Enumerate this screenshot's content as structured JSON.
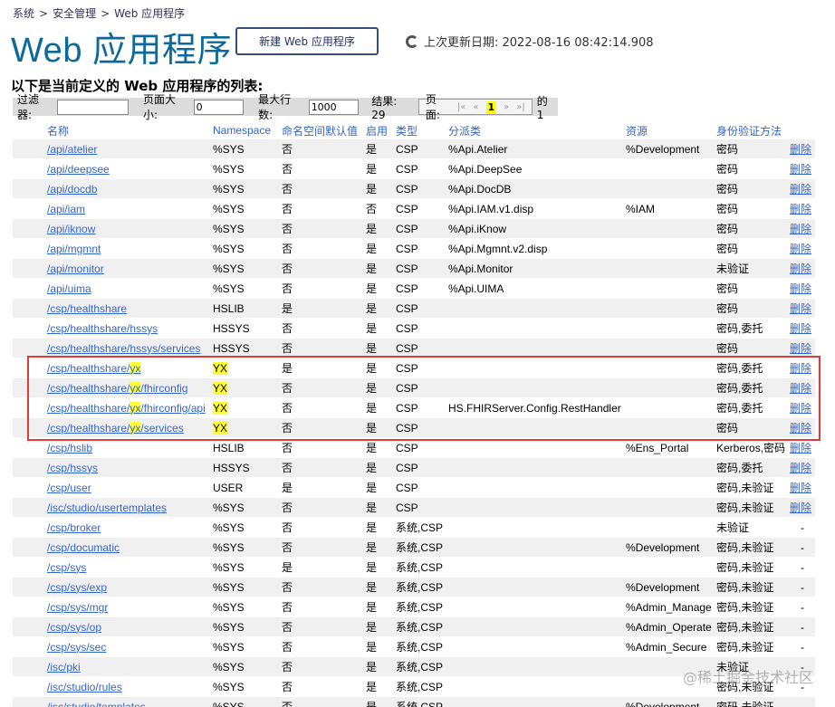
{
  "breadcrumb": [
    "系统",
    "安全管理",
    "Web 应用程序"
  ],
  "breadcrumb_separator": ">",
  "title": "Web 应用程序",
  "new_button": "新建 Web 应用程序",
  "last_update": "上次更新日期: 2022-08-16 08:42:14.908",
  "subtitle": "以下是当前定义的 Web 应用程序的列表:",
  "filter_bar": {
    "filter_label": "过滤器:",
    "page_size_label": "页面大小:",
    "page_size": "0",
    "max_rows_label": "最大行数:",
    "max_rows": "1000",
    "results": "结果: 29",
    "page_label": "页面:",
    "pager": [
      "|«",
      "«",
      "1",
      "»",
      "»|"
    ],
    "current_page": "1",
    "page_total": "的 1"
  },
  "highlight": "yx",
  "table": {
    "headers": [
      "名称",
      "Namespace",
      "命名空间默认值",
      "启用",
      "类型",
      "分派类",
      "资源",
      "身份验证方法",
      null
    ],
    "rows": [
      [
        "/api/atelier",
        "%SYS",
        "否",
        "是",
        "CSP",
        "%Api.Atelier",
        "%Development",
        "密码",
        "删除"
      ],
      [
        "/api/deepsee",
        "%SYS",
        "否",
        "是",
        "CSP",
        "%Api.DeepSee",
        null,
        "密码",
        "删除"
      ],
      [
        "/api/docdb",
        "%SYS",
        "否",
        "是",
        "CSP",
        "%Api.DocDB",
        null,
        "密码",
        "删除"
      ],
      [
        "/api/iam",
        "%SYS",
        "否",
        "否",
        "CSP",
        "%Api.IAM.v1.disp",
        "%IAM",
        "密码",
        "删除"
      ],
      [
        "/api/iknow",
        "%SYS",
        "否",
        "是",
        "CSP",
        "%Api.iKnow",
        null,
        "密码",
        "删除"
      ],
      [
        "/api/mgmnt",
        "%SYS",
        "否",
        "是",
        "CSP",
        "%Api.Mgmnt.v2.disp",
        null,
        "密码",
        "删除"
      ],
      [
        "/api/monitor",
        "%SYS",
        "否",
        "是",
        "CSP",
        "%Api.Monitor",
        null,
        "未验证",
        "删除"
      ],
      [
        "/api/uima",
        "%SYS",
        "否",
        "是",
        "CSP",
        "%Api.UIMA",
        null,
        "密码",
        "删除"
      ],
      [
        "/csp/healthshare",
        "HSLIB",
        "是",
        "是",
        "CSP",
        null,
        null,
        "密码",
        "删除"
      ],
      [
        "/csp/healthshare/hssys",
        "HSSYS",
        "否",
        "是",
        "CSP",
        null,
        null,
        "密码,委托",
        "删除"
      ],
      [
        "/csp/healthshare/hssys/services",
        "HSSYS",
        "否",
        "是",
        "CSP",
        null,
        null,
        "密码",
        "删除"
      ],
      [
        "/csp/healthshare/yx",
        "YX",
        "是",
        "是",
        "CSP",
        null,
        null,
        "密码,委托",
        "删除"
      ],
      [
        "/csp/healthshare/yx/fhirconfig",
        "YX",
        "否",
        "是",
        "CSP",
        null,
        null,
        "密码,委托",
        "删除"
      ],
      [
        "/csp/healthshare/yx/fhirconfig/api",
        "YX",
        "否",
        "是",
        "CSP",
        "HS.FHIRServer.Config.RestHandler",
        null,
        "密码,委托",
        "删除"
      ],
      [
        "/csp/healthshare/yx/services",
        "YX",
        "否",
        "是",
        "CSP",
        null,
        null,
        "密码",
        "删除"
      ],
      [
        "/csp/hslib",
        "HSLIB",
        "否",
        "是",
        "CSP",
        null,
        "%Ens_Portal",
        "Kerberos,密码",
        "删除"
      ],
      [
        "/csp/hssys",
        "HSSYS",
        "否",
        "是",
        "CSP",
        null,
        null,
        "密码,委托",
        "删除"
      ],
      [
        "/csp/user",
        "USER",
        "是",
        "是",
        "CSP",
        null,
        null,
        "密码,未验证",
        "删除"
      ],
      [
        "/isc/studio/usertemplates",
        "%SYS",
        "否",
        "是",
        "CSP",
        null,
        null,
        "密码,未验证",
        "删除"
      ],
      [
        "/csp/broker",
        "%SYS",
        "否",
        "是",
        "系统,CSP",
        null,
        null,
        "未验证",
        "-"
      ],
      [
        "/csp/documatic",
        "%SYS",
        "否",
        "是",
        "系统,CSP",
        null,
        "%Development",
        "密码,未验证",
        "-"
      ],
      [
        "/csp/sys",
        "%SYS",
        "是",
        "是",
        "系统,CSP",
        null,
        null,
        "密码,未验证",
        "-"
      ],
      [
        "/csp/sys/exp",
        "%SYS",
        "否",
        "是",
        "系统,CSP",
        null,
        "%Development",
        "密码,未验证",
        "-"
      ],
      [
        "/csp/sys/mgr",
        "%SYS",
        "否",
        "是",
        "系统,CSP",
        null,
        "%Admin_Manage",
        "密码,未验证",
        "-"
      ],
      [
        "/csp/sys/op",
        "%SYS",
        "否",
        "是",
        "系统,CSP",
        null,
        "%Admin_Operate",
        "密码,未验证",
        "-"
      ],
      [
        "/csp/sys/sec",
        "%SYS",
        "否",
        "是",
        "系统,CSP",
        null,
        "%Admin_Secure",
        "密码,未验证",
        "-"
      ],
      [
        "/isc/pki",
        "%SYS",
        "否",
        "是",
        "系统,CSP",
        null,
        null,
        "未验证",
        "-"
      ],
      [
        "/isc/studio/rules",
        "%SYS",
        "否",
        "是",
        "系统,CSP",
        null,
        null,
        "密码,未验证",
        "-"
      ],
      [
        "/isc/studio/templates",
        "%SYS",
        "否",
        "是",
        "系统,CSP",
        null,
        "%Development",
        "密码,未验证",
        "-"
      ]
    ]
  },
  "watermark": "@稀土掘金技术社区"
}
